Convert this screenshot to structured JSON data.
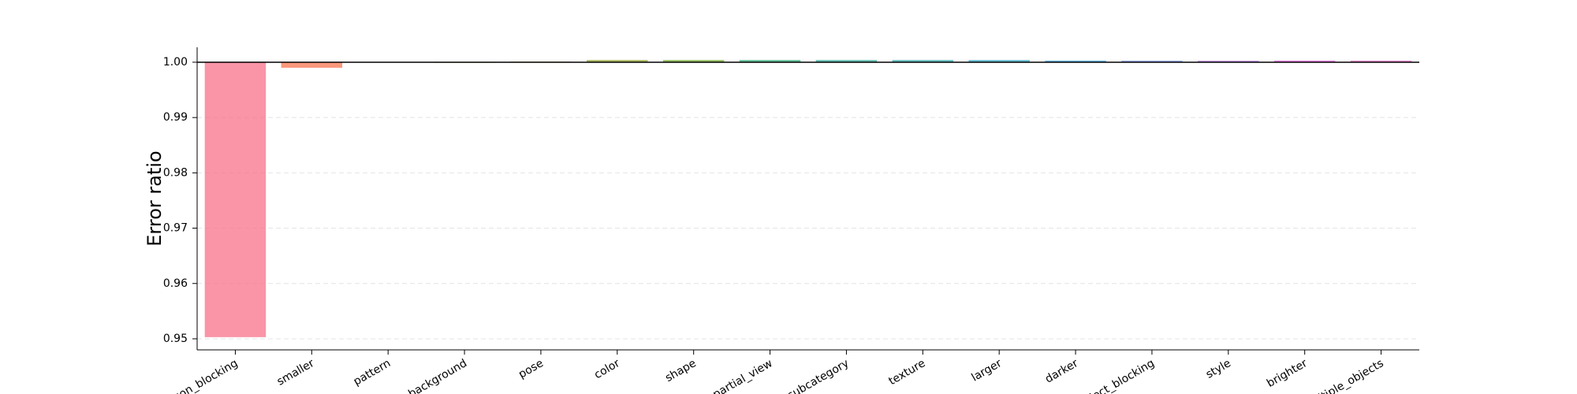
{
  "chart_data": {
    "type": "bar",
    "y_label": "Error ratio",
    "categories": [
      "person_blocking",
      "smaller",
      "pattern",
      "background",
      "pose",
      "color",
      "shape",
      "partial_view",
      "subcategory",
      "texture",
      "larger",
      "darker",
      "object_blocking",
      "style",
      "brighter",
      "multiple_objects"
    ],
    "values": [
      0.9503,
      0.999,
      0.99995,
      0.9999,
      1.0001,
      1.0004,
      1.0004,
      1.0004,
      1.0004,
      1.0004,
      1.0004,
      1.0003,
      1.0003,
      1.0003,
      1.0003,
      1.0003
    ],
    "colors": [
      "#f77189",
      "#f7754f",
      "#dc8932",
      "#c39532",
      "#ae9d31",
      "#97a431",
      "#77ab31",
      "#33b07a",
      "#35ad9c",
      "#36abae",
      "#38a9c5",
      "#3ba3ec",
      "#8197f4",
      "#bb83f4",
      "#f45deb",
      "#f66bc0"
    ],
    "baseline": 1,
    "ylim": [
      0.948,
      1.0027
    ],
    "yticks": [
      0.95,
      0.96,
      0.97,
      0.98,
      0.99,
      {
        "value": 1,
        "label": "1.00"
      }
    ],
    "grid": true
  }
}
